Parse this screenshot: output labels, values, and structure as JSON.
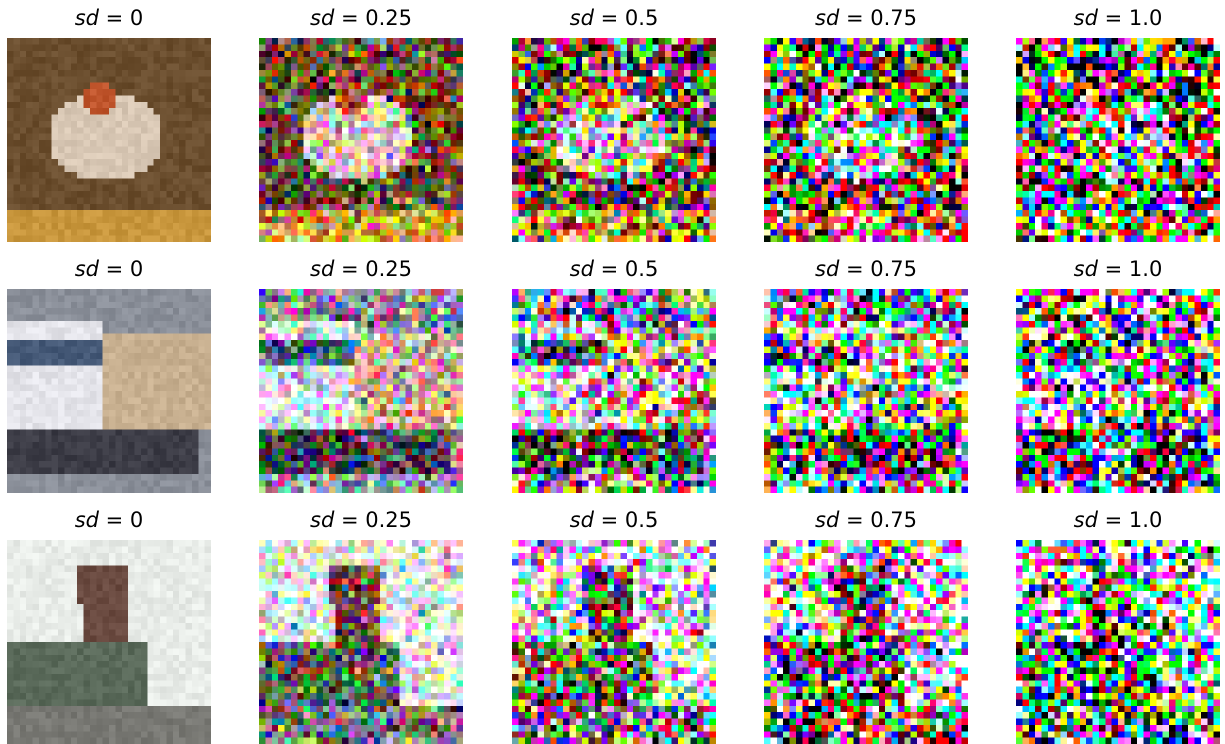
{
  "figure": {
    "rows": [
      {
        "subject_colors": {
          "background": "#6b4e2e",
          "subject": "#d8c7b4",
          "accent": "#c0552c"
        },
        "panels": [
          {
            "label_var": "sd",
            "label_eq": " = ",
            "label_val": "0"
          },
          {
            "label_var": "sd",
            "label_eq": " = ",
            "label_val": "0.25"
          },
          {
            "label_var": "sd",
            "label_eq": " = ",
            "label_val": "0.5"
          },
          {
            "label_var": "sd",
            "label_eq": " = ",
            "label_val": "0.75"
          },
          {
            "label_var": "sd",
            "label_eq": " = ",
            "label_val": "1.0"
          }
        ]
      },
      {
        "subject_colors": {
          "background": "#8a8f99",
          "subject": "#e4e4ea",
          "accent": "#c8b090"
        },
        "panels": [
          {
            "label_var": "sd",
            "label_eq": " = ",
            "label_val": "0"
          },
          {
            "label_var": "sd",
            "label_eq": " = ",
            "label_val": "0.25"
          },
          {
            "label_var": "sd",
            "label_eq": " = ",
            "label_val": "0.5"
          },
          {
            "label_var": "sd",
            "label_eq": " = ",
            "label_val": "0.75"
          },
          {
            "label_var": "sd",
            "label_eq": " = ",
            "label_val": "1.0"
          }
        ]
      },
      {
        "subject_colors": {
          "background": "#e8ece8",
          "subject": "#6a4a40",
          "accent": "#5a6a5a"
        },
        "panels": [
          {
            "label_var": "sd",
            "label_eq": " = ",
            "label_val": "0"
          },
          {
            "label_var": "sd",
            "label_eq": " = ",
            "label_val": "0.25"
          },
          {
            "label_var": "sd",
            "label_eq": " = ",
            "label_val": "0.5"
          },
          {
            "label_var": "sd",
            "label_eq": " = ",
            "label_val": "0.75"
          },
          {
            "label_var": "sd",
            "label_eq": " = ",
            "label_val": "1.0"
          }
        ]
      }
    ],
    "noise_levels": [
      0,
      0.25,
      0.5,
      0.75,
      1.0
    ]
  }
}
